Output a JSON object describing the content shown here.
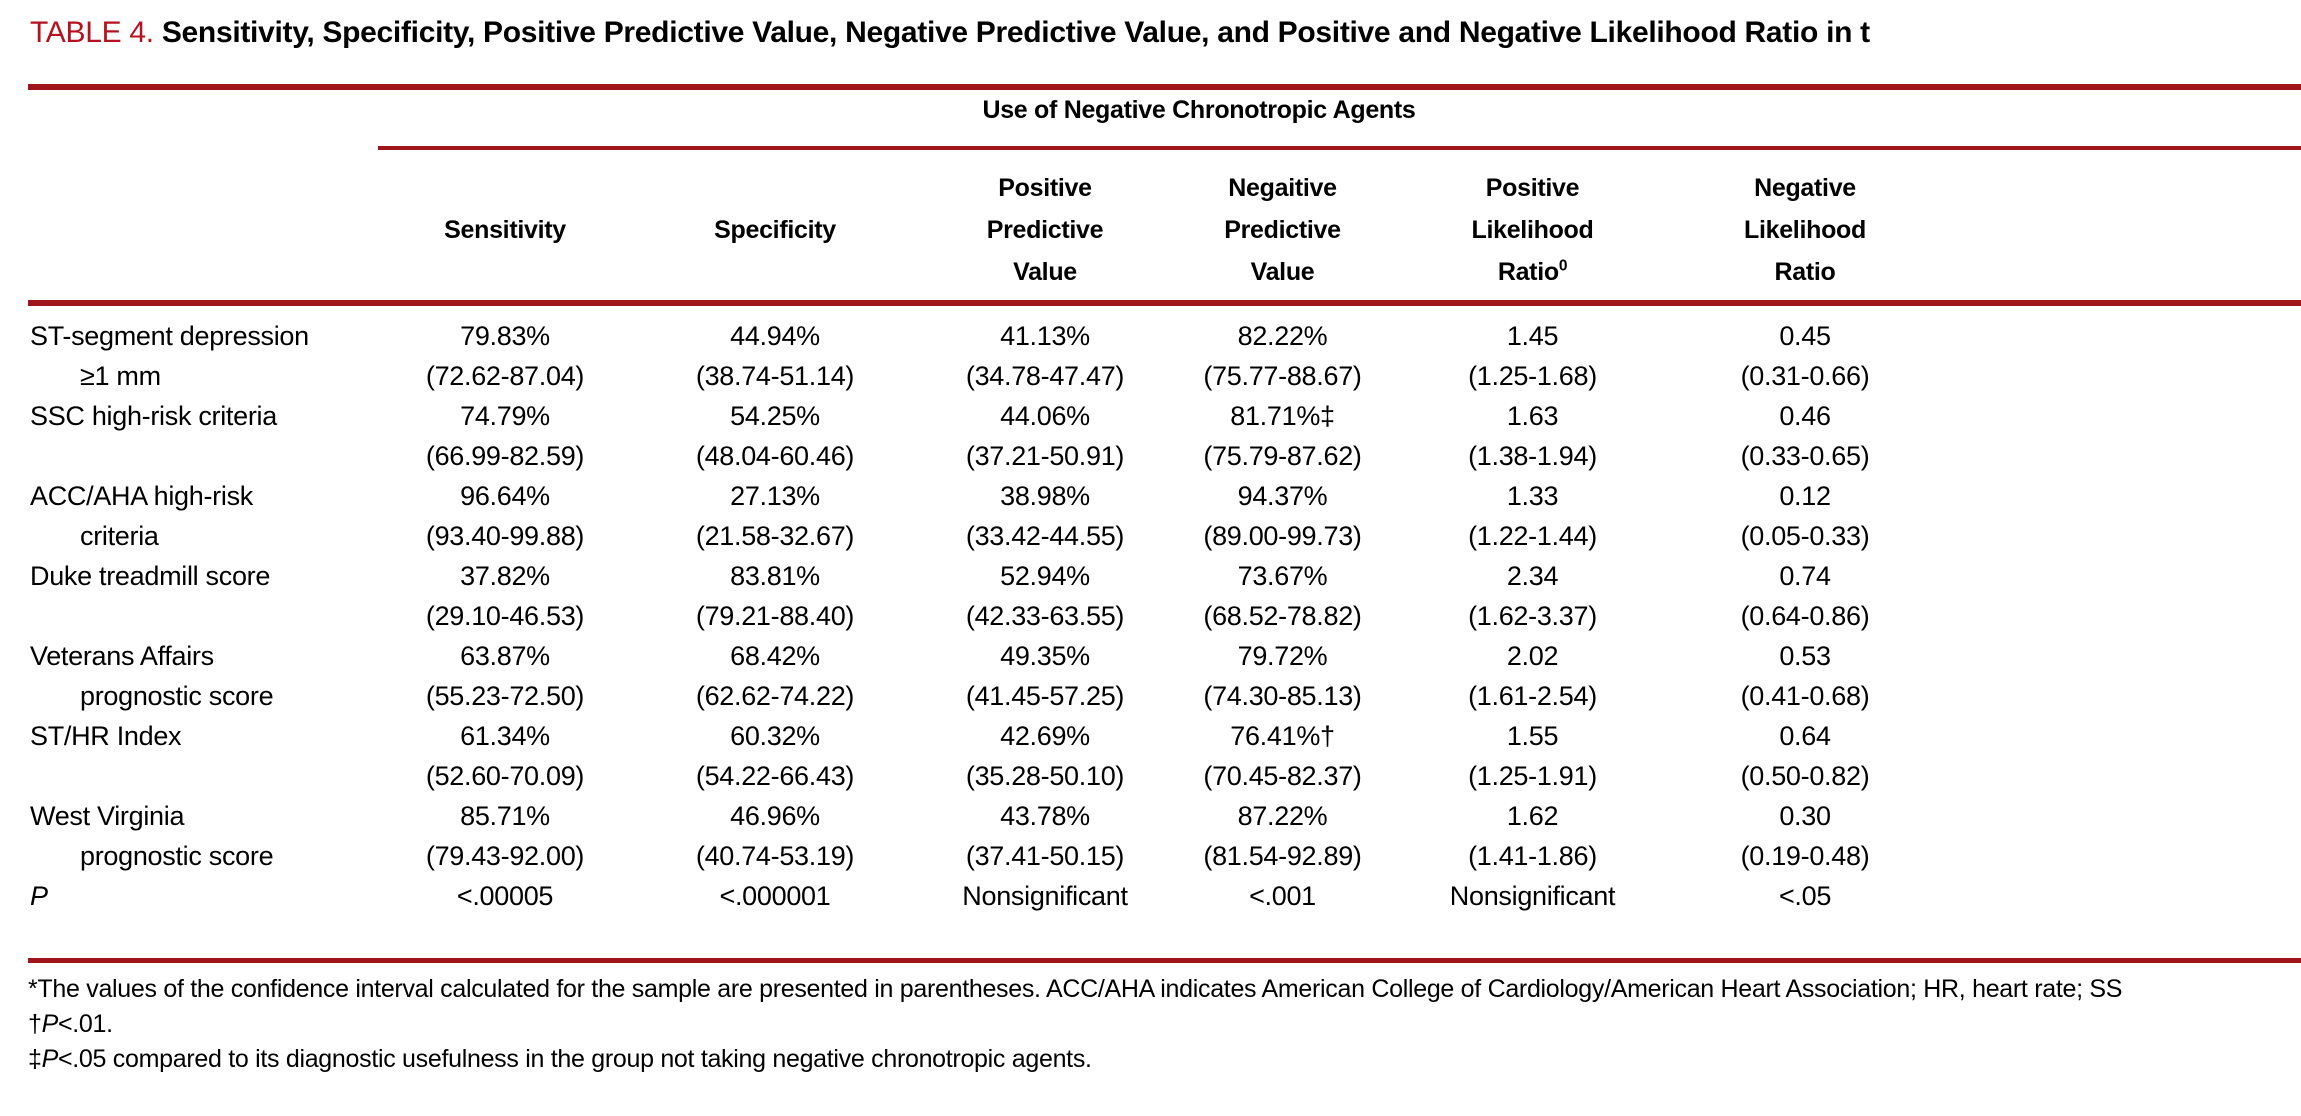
{
  "title": {
    "red_label": "TABLE 4.",
    "main": "Sensitivity, Specificity, Positive Predictive Value, Negative Predictive Value, and Positive and Negative Likelihood Ratio in t"
  },
  "colors": {
    "accent_rule_red": "#a01519",
    "title_red": "#b5121f",
    "text": "#000000",
    "background": "#ffffff"
  },
  "table": {
    "spanner": "Use of Negative Chronotropic Agents",
    "columns": [
      {
        "lines": [
          "Sensitivity"
        ]
      },
      {
        "lines": [
          "Specificity"
        ]
      },
      {
        "lines": [
          "Positive",
          "Predictive",
          "Value"
        ]
      },
      {
        "lines": [
          "Negaitive",
          "Predictive",
          "Value"
        ]
      },
      {
        "lines": [
          "Positive",
          "Likelihood",
          "Ratio"
        ],
        "sup": "0"
      },
      {
        "lines": [
          "Negative",
          "Likelihood",
          "Ratio"
        ]
      }
    ],
    "rows": [
      {
        "label": [
          "ST-segment depression",
          "≥1 mm"
        ],
        "values": [
          "79.83%",
          "44.94%",
          "41.13%",
          "82.22%",
          "1.45",
          "0.45"
        ],
        "ci": [
          "(72.62-87.04)",
          "(38.74-51.14)",
          "(34.78-47.47)",
          "(75.77-88.67)",
          "(1.25-1.68)",
          "(0.31-0.66)"
        ]
      },
      {
        "label": [
          "SSC high-risk criteria",
          ""
        ],
        "values": [
          "74.79%",
          "54.25%",
          "44.06%",
          "81.71%‡",
          "1.63",
          "0.46"
        ],
        "ci": [
          "(66.99-82.59)",
          "(48.04-60.46)",
          "(37.21-50.91)",
          "(75.79-87.62)",
          "(1.38-1.94)",
          "(0.33-0.65)"
        ]
      },
      {
        "label": [
          "ACC/AHA high-risk",
          "criteria"
        ],
        "values": [
          "96.64%",
          "27.13%",
          "38.98%",
          "94.37%",
          "1.33",
          "0.12"
        ],
        "ci": [
          "(93.40-99.88)",
          "(21.58-32.67)",
          "(33.42-44.55)",
          "(89.00-99.73)",
          "(1.22-1.44)",
          "(0.05-0.33)"
        ]
      },
      {
        "label": [
          "Duke treadmill score",
          ""
        ],
        "values": [
          "37.82%",
          "83.81%",
          "52.94%",
          "73.67%",
          "2.34",
          "0.74"
        ],
        "ci": [
          "(29.10-46.53)",
          "(79.21-88.40)",
          "(42.33-63.55)",
          "(68.52-78.82)",
          "(1.62-3.37)",
          "(0.64-0.86)"
        ]
      },
      {
        "label": [
          "Veterans Affairs",
          "prognostic score"
        ],
        "values": [
          "63.87%",
          "68.42%",
          "49.35%",
          "79.72%",
          "2.02",
          "0.53"
        ],
        "ci": [
          "(55.23-72.50)",
          "(62.62-74.22)",
          "(41.45-57.25)",
          "(74.30-85.13)",
          "(1.61-2.54)",
          "(0.41-0.68)"
        ]
      },
      {
        "label": [
          "ST/HR Index",
          ""
        ],
        "values": [
          "61.34%",
          "60.32%",
          "42.69%",
          "76.41%†",
          "1.55",
          "0.64"
        ],
        "ci": [
          "(52.60-70.09)",
          "(54.22-66.43)",
          "(35.28-50.10)",
          "(70.45-82.37)",
          "(1.25-1.91)",
          "(0.50-0.82)"
        ]
      },
      {
        "label": [
          "West Virginia",
          "prognostic score"
        ],
        "values": [
          "85.71%",
          "46.96%",
          "43.78%",
          "87.22%",
          "1.62",
          "0.30"
        ],
        "ci": [
          "(79.43-92.00)",
          "(40.74-53.19)",
          "(37.41-50.15)",
          "(81.54-92.89)",
          "(1.41-1.86)",
          "(0.19-0.48)"
        ]
      },
      {
        "label": [
          "P"
        ],
        "italic": true,
        "values": [
          "<.00005",
          "<.000001",
          "Nonsignificant",
          "<.001",
          "Nonsignificant",
          "<.05"
        ],
        "ci": null
      }
    ]
  },
  "footnotes": [
    {
      "text": "*The values of the confidence interval calculated for the sample are presented in parentheses. ACC/AHA indicates American College of Cardiology/American Heart Association; HR, heart rate; SS"
    },
    {
      "prefix": "†",
      "italic_var": "P",
      "rest": "<.01."
    },
    {
      "prefix": "‡",
      "italic_var": "P",
      "rest": "<.05 compared to its diagnostic usefulness in the group not taking negative chronotropic agents."
    }
  ]
}
